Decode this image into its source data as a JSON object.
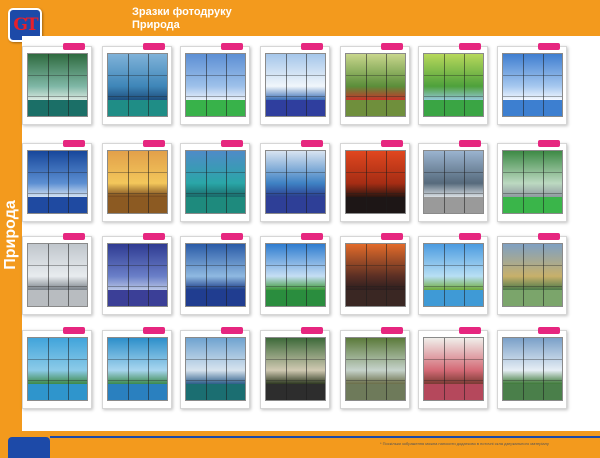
{
  "header": {
    "logo_text": "GT",
    "title_line1": "Зразки фотодруку",
    "title_line2": "Природа"
  },
  "sidebar": {
    "vertical_label": "Природа"
  },
  "footer": {
    "footnote": "* Поскільки зображення можна наносити додатково в поточні скла дзеркального матеріалу"
  },
  "catalog": {
    "rows": [
      [
        {
          "name": "waterfall",
          "colors": [
            "#2f6b3f",
            "#7fb7a6",
            "#dbe9e1"
          ],
          "base": "#1b6f67"
        },
        {
          "name": "wave",
          "colors": [
            "#7fb2d9",
            "#3f86b8",
            "#1e4f7e"
          ],
          "base": "#1f8d86"
        },
        {
          "name": "blue-sky",
          "colors": [
            "#5d8fd4",
            "#9ec1ea",
            "#e8f0fa"
          ],
          "base": "#38b24a"
        },
        {
          "name": "sunbeams-sky",
          "colors": [
            "#a5c6ea",
            "#f1f6fb",
            "#3c6fb6"
          ],
          "base": "#2f3e9e"
        },
        {
          "name": "poppy-field",
          "colors": [
            "#c8d68c",
            "#5b8e3a",
            "#c7342a"
          ],
          "base": "#6f8f3c"
        },
        {
          "name": "green-lake",
          "colors": [
            "#b7d85c",
            "#4ea13b",
            "#93c7d6"
          ],
          "base": "#3aa544"
        },
        {
          "name": "sky-sun",
          "colors": [
            "#3f7ed0",
            "#a6c8ef",
            "#f3f8ff"
          ],
          "base": "#3d7fd0"
        }
      ],
      [
        {
          "name": "cloud-sky",
          "colors": [
            "#17479b",
            "#5c8fd2",
            "#d2e1f2"
          ],
          "base": "#1f4aa1"
        },
        {
          "name": "golden-sunset",
          "colors": [
            "#e2a04a",
            "#f3c75b",
            "#7a4b1e"
          ],
          "base": "#8c5a22"
        },
        {
          "name": "palm-beach",
          "colors": [
            "#4f8bc8",
            "#2aa6a7",
            "#1a6a6a"
          ],
          "base": "#1e8a7d"
        },
        {
          "name": "tropic-sea",
          "colors": [
            "#d8e3f1",
            "#3f82c4",
            "#2b3f8f"
          ],
          "base": "#2e3f97"
        },
        {
          "name": "red-sunset",
          "colors": [
            "#e0471f",
            "#a62d14",
            "#2b1610"
          ],
          "base": "#1d1616"
        },
        {
          "name": "mountain-lake",
          "colors": [
            "#9ab3cf",
            "#566a7c",
            "#d7dde2"
          ],
          "base": "#9a9a9a"
        },
        {
          "name": "green-cascade",
          "colors": [
            "#3d8a45",
            "#bcd9c1",
            "#8f9aa0"
          ],
          "base": "#3ab54a"
        }
      ],
      [
        {
          "name": "winter-forest",
          "colors": [
            "#c0c6cc",
            "#e8ecef",
            "#7b8289"
          ],
          "base": "#b8bcc0"
        },
        {
          "name": "blue-clouds",
          "colors": [
            "#2f3b92",
            "#6a7fc8",
            "#b8c5e6"
          ],
          "base": "#3b3f97"
        },
        {
          "name": "ocean-sunrise",
          "colors": [
            "#2a5ba7",
            "#8fb9e1",
            "#1e3f8a"
          ],
          "base": "#203d90"
        },
        {
          "name": "sun-meadow",
          "colors": [
            "#2e7ccf",
            "#c5def4",
            "#3f9b3a"
          ],
          "base": "#2a8d3e"
        },
        {
          "name": "evening-sea",
          "colors": [
            "#e36b2a",
            "#5b2f24",
            "#2d1f1f"
          ],
          "base": "#3a2723"
        },
        {
          "name": "palm-shore",
          "colors": [
            "#4b9be0",
            "#b8dff4",
            "#6fab3d"
          ],
          "base": "#3f9ad6"
        },
        {
          "name": "castle-lake",
          "colors": [
            "#7fa0c2",
            "#c8b06a",
            "#4e7a4a"
          ],
          "base": "#7ba56b"
        }
      ],
      [
        {
          "name": "lakeside",
          "colors": [
            "#41a4db",
            "#8ccbe8",
            "#3f8a4a"
          ],
          "base": "#2f95cc"
        },
        {
          "name": "tropical-island",
          "colors": [
            "#2d8fca",
            "#a8d6ef",
            "#3d8a4f"
          ],
          "base": "#2a80bf"
        },
        {
          "name": "volcano",
          "colors": [
            "#6fa3d0",
            "#d7e3ee",
            "#2f5f8a"
          ],
          "base": "#1b6e71"
        },
        {
          "name": "birch-grove",
          "colors": [
            "#3d6a3a",
            "#d0c9b2",
            "#2f3a22"
          ],
          "base": "#2d2d2d"
        },
        {
          "name": "stone-falls",
          "colors": [
            "#5b7a3a",
            "#c6d3cb",
            "#6b6f4a"
          ],
          "base": "#6e7a5a"
        },
        {
          "name": "sakura",
          "colors": [
            "#f0eeea",
            "#d46a76",
            "#7a3b34"
          ],
          "base": "#b5485c"
        },
        {
          "name": "alpine-valley",
          "colors": [
            "#7aa0c8",
            "#e6eef5",
            "#3f7a3a"
          ],
          "base": "#4a7f4a"
        }
      ]
    ]
  }
}
